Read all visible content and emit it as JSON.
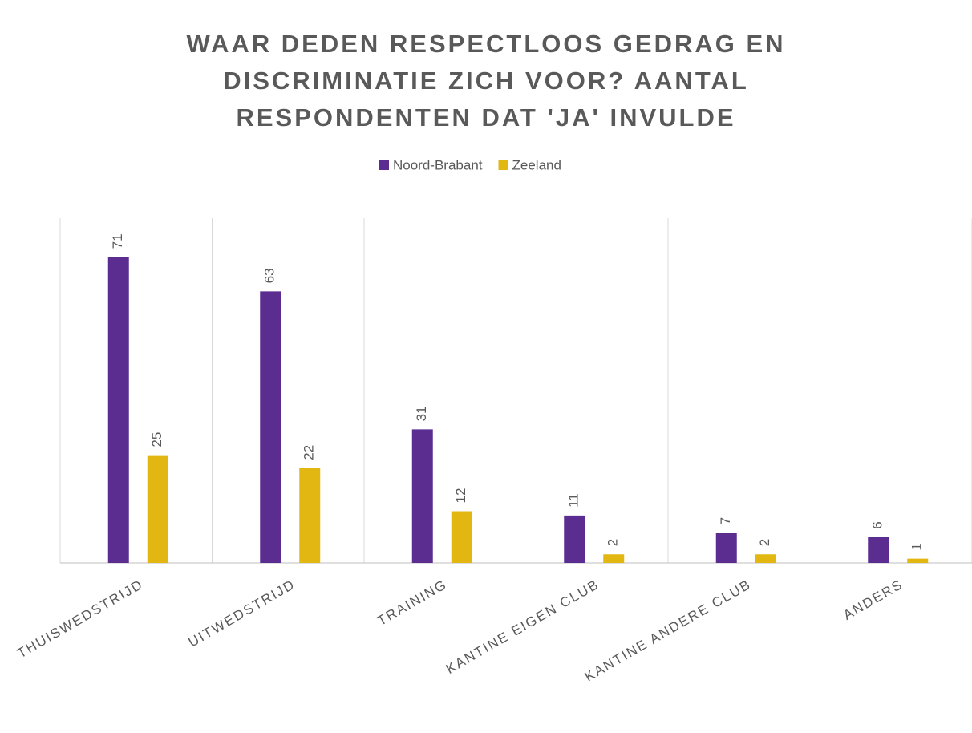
{
  "chart_data": {
    "type": "bar",
    "title": "WAAR DEDEN RESPECTLOOS GEDRAG EN DISCRIMINATIE ZICH VOOR?  AANTAL RESPONDENTEN DAT 'JA' INVULDE",
    "categories": [
      "THUISWEDSTRIJD",
      "UITWEDSTRIJD",
      "TRAINING",
      "KANTINE EIGEN CLUB",
      "KANTINE ANDERE CLUB",
      "ANDERS"
    ],
    "series": [
      {
        "name": "Noord-Brabant",
        "color": "#5c2d91",
        "values": [
          71,
          63,
          31,
          11,
          7,
          6
        ]
      },
      {
        "name": "Zeeland",
        "color": "#e3b711",
        "values": [
          25,
          22,
          12,
          2,
          2,
          1
        ]
      }
    ],
    "ylim": [
      0,
      80
    ],
    "legend": "top"
  }
}
